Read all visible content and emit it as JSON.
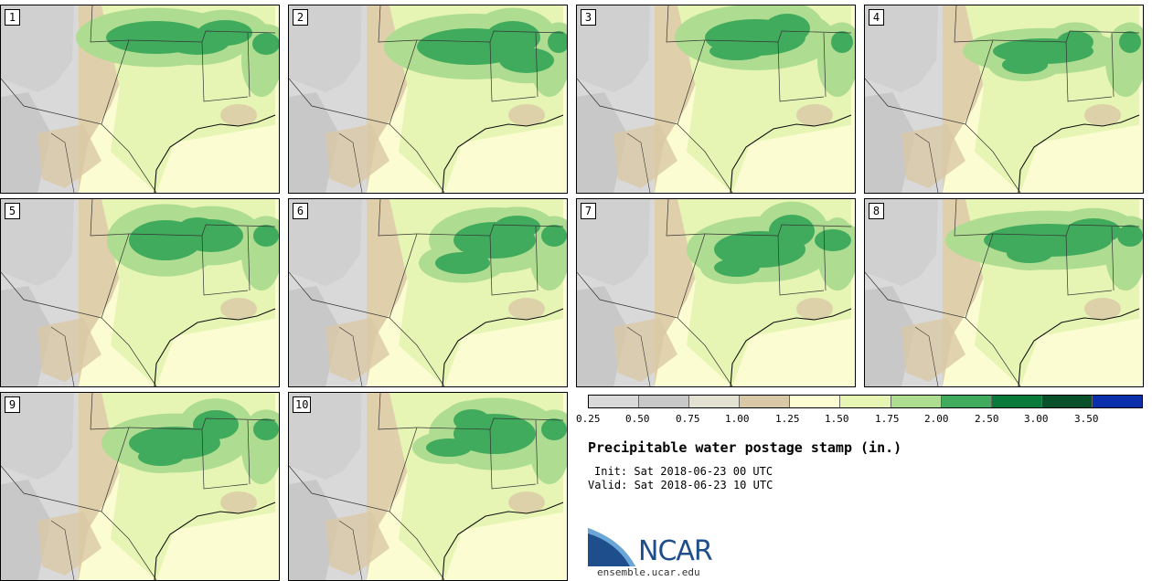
{
  "panels": [
    {
      "label": "1"
    },
    {
      "label": "2"
    },
    {
      "label": "3"
    },
    {
      "label": "4"
    },
    {
      "label": "5"
    },
    {
      "label": "6"
    },
    {
      "label": "7"
    },
    {
      "label": "8"
    },
    {
      "label": "9"
    },
    {
      "label": "10"
    }
  ],
  "legend": {
    "ticks": [
      "0.25",
      "0.50",
      "0.75",
      "1.00",
      "1.25",
      "1.50",
      "1.75",
      "2.00",
      "2.50",
      "3.00",
      "3.50"
    ],
    "colors": [
      "#d9d9d9",
      "#c8c8c8",
      "#e3e1d2",
      "#d9c8a5",
      "#fbfcd2",
      "#e6f5b3",
      "#aedc90",
      "#41ab5d",
      "#097a39",
      "#08512a",
      "#0b2eaa"
    ]
  },
  "title": "Precipitable water postage stamp (in.)",
  "init": "Init: Sat 2018-06-23 00 UTC",
  "valid": "Valid: Sat 2018-06-23 10 UTC",
  "logo_text": "NCAR",
  "site": "ensemble.ucar.edu"
}
